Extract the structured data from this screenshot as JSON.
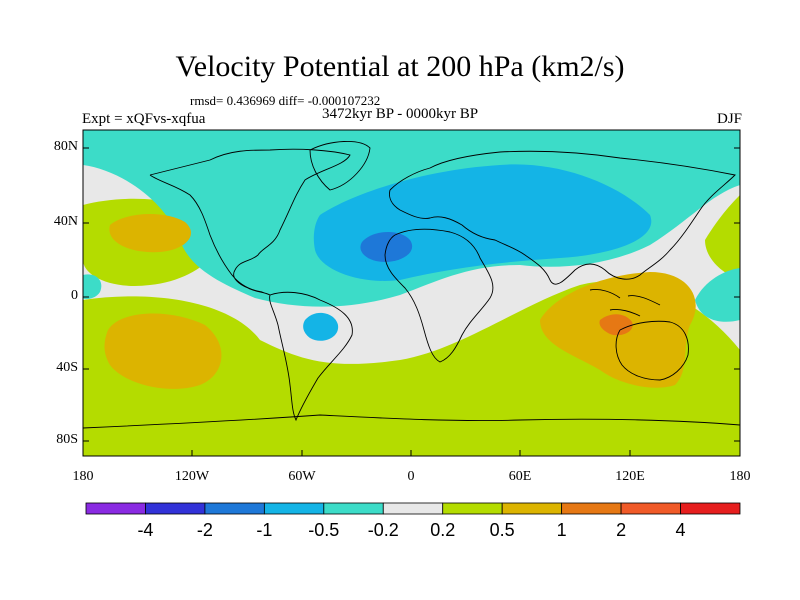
{
  "title": "Velocity Potential at 200 hPa (km2/s)",
  "stats": "rmsd= 0.436969 diff= -0.000107232",
  "experiment": "Expt = xQFvs-xqfua",
  "period": "3472kyr BP - 0000kyr BP",
  "season": "DJF",
  "lat_labels": [
    "80N",
    "40N",
    "0",
    "40S",
    "80S"
  ],
  "lon_labels": [
    "180",
    "120W",
    "60W",
    "0",
    "60E",
    "120E",
    "180"
  ],
  "colorbar": {
    "labels": [
      "-4",
      "-2",
      "-1",
      "-0.5",
      "-0.2",
      "0.2",
      "0.5",
      "1",
      "2",
      "4"
    ],
    "colors": [
      "#8a2be2",
      "#3232d8",
      "#1e78d8",
      "#14b4e6",
      "#3cdcc8",
      "#e8e8e8",
      "#b4dc00",
      "#dcb400",
      "#e67814",
      "#f05a28",
      "#e61e1e"
    ]
  },
  "map_colors": {
    "neutral": "#e8e8e8",
    "pos_0_2": "#b4dc00",
    "pos_0_5": "#dcb400",
    "pos_1": "#e67814",
    "neg_0_2": "#3cdcc8",
    "neg_0_5": "#14b4e6",
    "neg_1": "#1e78d8"
  }
}
